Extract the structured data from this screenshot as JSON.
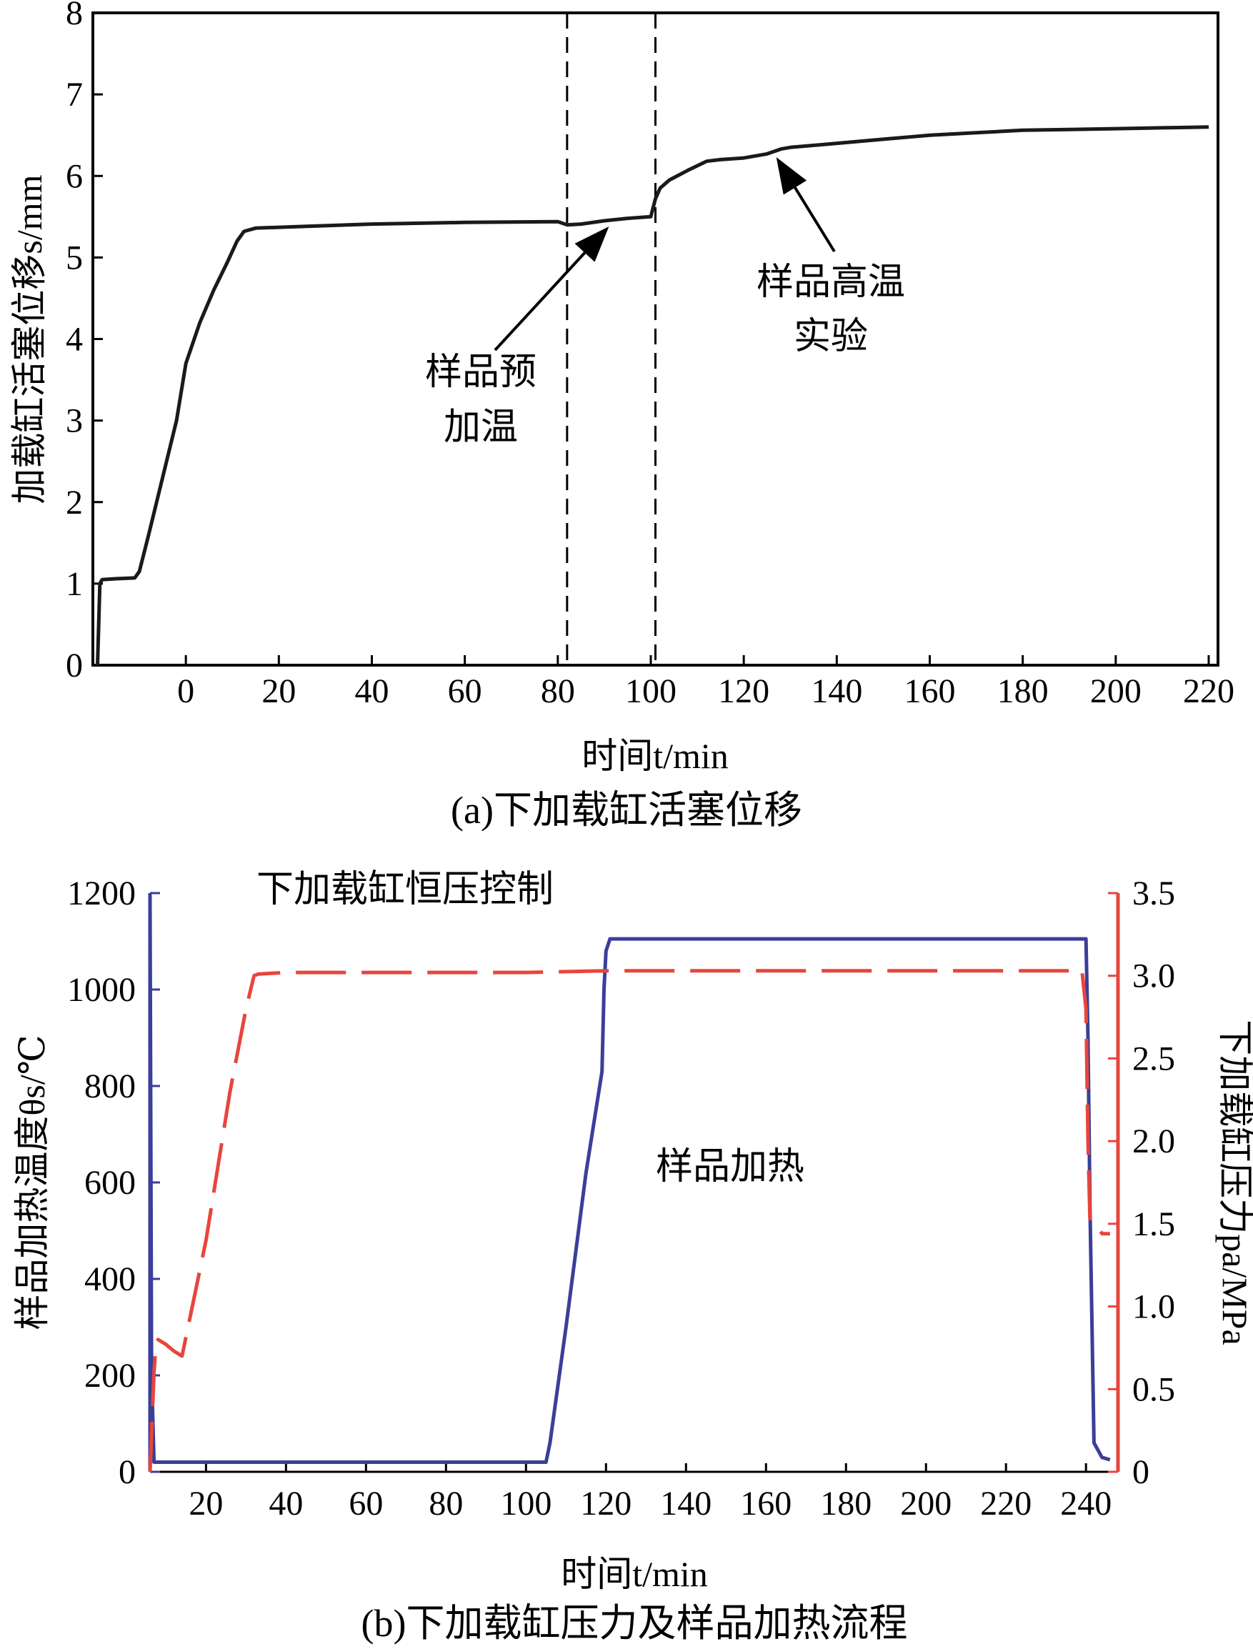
{
  "chart_data": [
    {
      "type": "line",
      "caption": "(a)下加载缸活塞位移",
      "xlabel": "时间t/min",
      "ylabel": "加载缸活塞位移s/mm",
      "xlim": [
        -20,
        222
      ],
      "ylim": [
        0,
        8
      ],
      "xticks": [
        0,
        20,
        40,
        60,
        80,
        100,
        120,
        140,
        160,
        180,
        200,
        220
      ],
      "yticks": [
        0,
        1,
        2,
        3,
        4,
        5,
        6,
        7,
        8
      ],
      "grid": false,
      "series": [
        {
          "color": "#1a1a1a",
          "x": [
            -19,
            -18.5,
            -18,
            -15,
            -11,
            -10,
            -8,
            -5,
            -2,
            0,
            3,
            6,
            9,
            11,
            12.5,
            15,
            20,
            40,
            60,
            80,
            82,
            85,
            90,
            95,
            100,
            101,
            102,
            104,
            108,
            112,
            115,
            120,
            125,
            128,
            130,
            140,
            150,
            160,
            170,
            180,
            190,
            200,
            210,
            220
          ],
          "values": [
            0,
            1.0,
            1.05,
            1.06,
            1.07,
            1.15,
            1.6,
            2.3,
            3.0,
            3.7,
            4.2,
            4.6,
            4.95,
            5.2,
            5.32,
            5.36,
            5.37,
            5.41,
            5.43,
            5.44,
            5.4,
            5.41,
            5.45,
            5.48,
            5.5,
            5.72,
            5.85,
            5.95,
            6.07,
            6.18,
            6.2,
            6.22,
            6.27,
            6.33,
            6.35,
            6.4,
            6.45,
            6.5,
            6.53,
            6.56,
            6.57,
            6.58,
            6.59,
            6.6
          ]
        }
      ],
      "vlines": [
        82,
        101
      ],
      "annotations": [
        {
          "lines": [
            "样品预",
            "加温"
          ],
          "arrow_to": {
            "x": 91,
            "y": 5.45
          }
        },
        {
          "lines": [
            "样品高温",
            "实验"
          ],
          "arrow_to": {
            "x": 127,
            "y": 6.3
          }
        }
      ]
    },
    {
      "type": "line",
      "caption": "(b)下加载缸压力及样品加热流程",
      "xlabel": "时间t/min",
      "ylabel_left": "样品加热温度θs/℃",
      "ylabel_right": "下加载缸压力pa/MPa",
      "xlim": [
        6,
        248
      ],
      "ylim_left": [
        0,
        1200
      ],
      "ylim_right": [
        0,
        3.5
      ],
      "xticks": [
        20,
        40,
        60,
        80,
        100,
        120,
        140,
        160,
        180,
        200,
        220,
        240
      ],
      "yticks_left": [
        0,
        200,
        400,
        600,
        800,
        1000,
        1200
      ],
      "yticks_right": [
        0,
        0.5,
        1.0,
        1.5,
        2.0,
        2.5,
        3.0,
        3.5
      ],
      "ytick_labels_right": [
        "0",
        "0.5",
        "1.0",
        "1.5",
        "2.0",
        "2.5",
        "3.0",
        "3.5"
      ],
      "grid": false,
      "series": [
        {
          "axis": "left",
          "color": "#3a3f99",
          "style": "solid",
          "x": [
            6,
            6.4,
            7,
            50,
            100,
            105,
            106,
            110,
            115,
            119,
            119.5,
            120,
            121,
            200,
            240,
            240.5,
            241,
            242,
            244,
            246
          ],
          "values": [
            1200,
            200,
            20,
            20,
            20,
            20,
            60,
            300,
            620,
            830,
            1000,
            1080,
            1105,
            1105,
            1105,
            900,
            550,
            60,
            30,
            25
          ]
        },
        {
          "axis": "right",
          "color": "#e8453c",
          "style": "dashed",
          "x": [
            6,
            7,
            7.5,
            8,
            10,
            12,
            14,
            20,
            26,
            30,
            32,
            33,
            40,
            60,
            100,
            120,
            160,
            200,
            239,
            240,
            240.5,
            241,
            243,
            244,
            246
          ],
          "values": [
            0,
            0.6,
            0.78,
            0.8,
            0.77,
            0.73,
            0.7,
            1.4,
            2.3,
            2.8,
            3.0,
            3.01,
            3.02,
            3.02,
            3.02,
            3.03,
            3.03,
            3.03,
            3.03,
            2.8,
            2.0,
            1.52,
            1.48,
            1.44,
            1.44
          ]
        }
      ],
      "annotations": [
        {
          "text": "下加载缸恒压控制"
        },
        {
          "text": "样品加热"
        }
      ]
    }
  ]
}
